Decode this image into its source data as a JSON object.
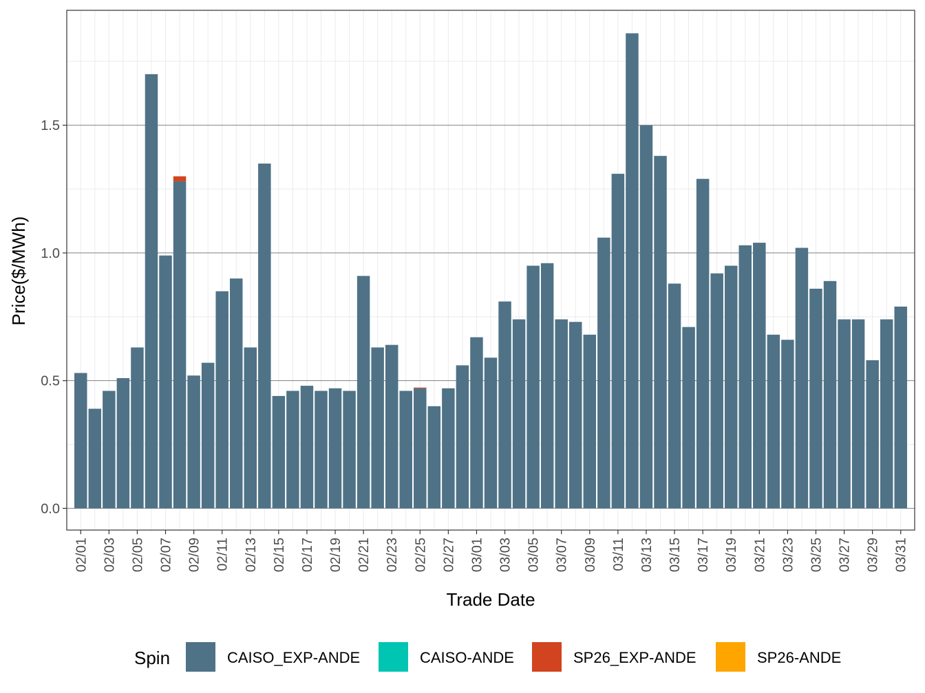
{
  "chart_data": {
    "type": "bar",
    "xlabel": "Trade Date",
    "ylabel": "Price($/MWh)",
    "ylim": [
      -0.085,
      1.95
    ],
    "yticks": [
      0.0,
      0.5,
      1.0,
      1.5
    ],
    "ytick_labels": [
      "0.0",
      "0.5",
      "1.0",
      "1.5"
    ],
    "grid": true,
    "legend_position": "bottom",
    "legend_title": "Spin",
    "categories": [
      "02/01",
      "02/02",
      "02/03",
      "02/04",
      "02/05",
      "02/06",
      "02/07",
      "02/08",
      "02/09",
      "02/10",
      "02/11",
      "02/12",
      "02/13",
      "02/14",
      "02/15",
      "02/16",
      "02/17",
      "02/18",
      "02/19",
      "02/20",
      "02/21",
      "02/22",
      "02/23",
      "02/24",
      "02/25",
      "02/26",
      "02/27",
      "02/28",
      "03/01",
      "03/02",
      "03/03",
      "03/04",
      "03/05",
      "03/06",
      "03/07",
      "03/08",
      "03/09",
      "03/10",
      "03/11",
      "03/12",
      "03/13",
      "03/14",
      "03/15",
      "03/16",
      "03/17",
      "03/18",
      "03/19",
      "03/20",
      "03/21",
      "03/22",
      "03/23",
      "03/24",
      "03/25",
      "03/26",
      "03/27",
      "03/28",
      "03/29",
      "03/30",
      "03/31"
    ],
    "tick_labels": [
      "02/01",
      "02/03",
      "02/05",
      "02/07",
      "02/09",
      "02/11",
      "02/13",
      "02/15",
      "02/17",
      "02/19",
      "02/21",
      "02/23",
      "02/25",
      "02/27",
      "03/01",
      "03/03",
      "03/05",
      "03/07",
      "03/09",
      "03/11",
      "03/13",
      "03/15",
      "03/17",
      "03/19",
      "03/21",
      "03/23",
      "03/25",
      "03/27",
      "03/29",
      "03/31"
    ],
    "series": [
      {
        "name": "CAISO_EXP-ANDE",
        "color": "#4f7286",
        "values": [
          0.53,
          0.39,
          0.46,
          0.51,
          0.63,
          1.7,
          0.99,
          1.28,
          0.52,
          0.57,
          0.85,
          0.9,
          0.63,
          1.35,
          0.44,
          0.46,
          0.48,
          0.46,
          0.47,
          0.46,
          0.91,
          0.63,
          0.64,
          0.46,
          0.47,
          0.4,
          0.47,
          0.56,
          0.67,
          0.59,
          0.81,
          0.74,
          0.95,
          0.96,
          0.74,
          0.73,
          0.68,
          1.06,
          1.31,
          1.86,
          1.5,
          1.38,
          0.88,
          0.71,
          1.29,
          0.92,
          0.95,
          1.03,
          1.04,
          0.68,
          0.66,
          1.02,
          0.86,
          0.89,
          0.74,
          0.74,
          0.58,
          0.74,
          0.79
        ]
      },
      {
        "name": "CAISO-ANDE",
        "color": "#00c5b2",
        "values": [
          0,
          0,
          0,
          0,
          0,
          0,
          0,
          0,
          0,
          0,
          0,
          0,
          0,
          0,
          0,
          0,
          0,
          0,
          0,
          0,
          0,
          0,
          0,
          0,
          0,
          0,
          0,
          0,
          0,
          0,
          0,
          0,
          0,
          0,
          0,
          0,
          0,
          0,
          0,
          0,
          0,
          0,
          0,
          0,
          0,
          0,
          0,
          0,
          0,
          0,
          0,
          0,
          0,
          0,
          0,
          0,
          0,
          0,
          0
        ]
      },
      {
        "name": "SP26_EXP-ANDE",
        "color": "#d1441f",
        "values": [
          0,
          0,
          0,
          0,
          0,
          0,
          0,
          0.02,
          0,
          0,
          0,
          0,
          0,
          0,
          0,
          0,
          0,
          0,
          0,
          0,
          0,
          0,
          0,
          0,
          0.003,
          0,
          0,
          0,
          0,
          0,
          0,
          0,
          0,
          0,
          0,
          0,
          0,
          0,
          0,
          0,
          0,
          0,
          0,
          0,
          0,
          0,
          0,
          0,
          0,
          0,
          0,
          0,
          0,
          0,
          0,
          0,
          0,
          0,
          0
        ]
      },
      {
        "name": "SP26-ANDE",
        "color": "#ffa500",
        "values": [
          0,
          0,
          0,
          0,
          0,
          0,
          0,
          0,
          0,
          0,
          0,
          0,
          0,
          0,
          0,
          0,
          0,
          0,
          0,
          0,
          0,
          0,
          0,
          0,
          0,
          0,
          0,
          0,
          0,
          0,
          0,
          0,
          0,
          0,
          0,
          0,
          0,
          0,
          0,
          0,
          0,
          0,
          0,
          0,
          0,
          0,
          0,
          0,
          0,
          0,
          0,
          0,
          0,
          0,
          0,
          0,
          0,
          0,
          0
        ]
      }
    ]
  }
}
